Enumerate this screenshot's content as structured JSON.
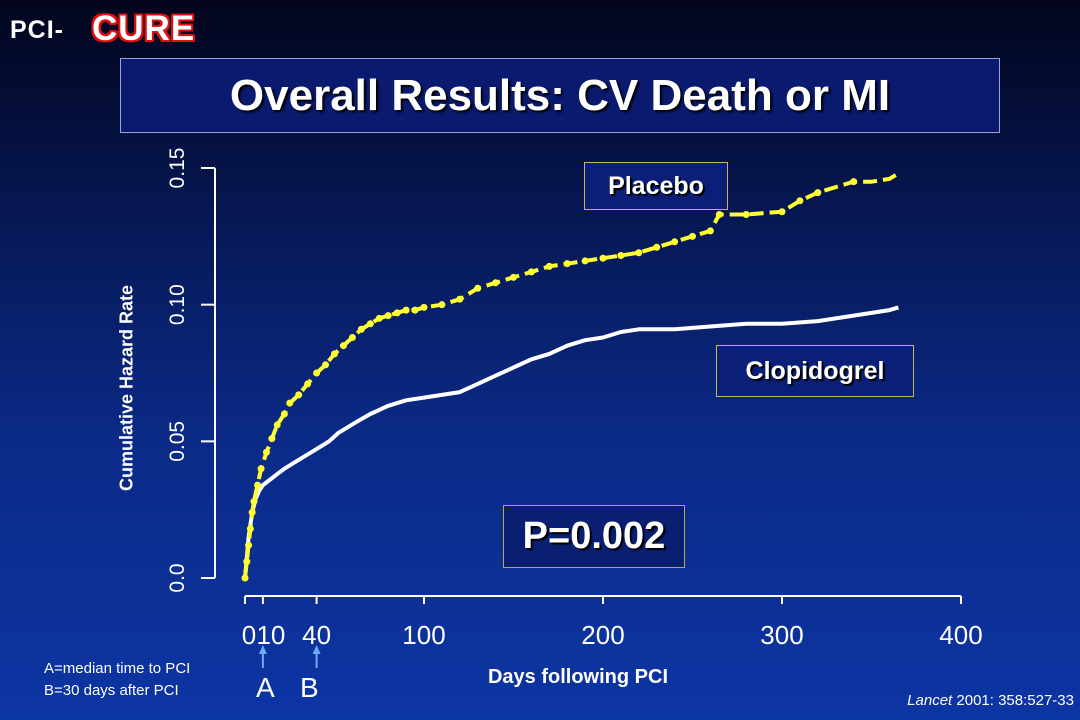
{
  "logo": {
    "prefix": "PCI-",
    "brand": "CURE"
  },
  "title": "Overall Results: CV Death or MI",
  "notes": {
    "a": "A=median time to PCI",
    "b": "B=30 days after PCI"
  },
  "markers": {
    "a": "A",
    "b": "B"
  },
  "citation": {
    "journal": "Lancet",
    "rest": " 2001: 358:527-33"
  },
  "p_value": "P=0.002",
  "colors": {
    "placebo": "#ffff33",
    "clopidogrel": "#ffffff",
    "background": "#0b2a86",
    "logo_outline": "#e01010"
  },
  "chart_data": {
    "type": "line",
    "xlabel": "Days following PCI",
    "ylabel": "Cumulative Hazard Rate",
    "xlim": [
      0,
      400
    ],
    "ylim": [
      0,
      0.15
    ],
    "x_ticks": [
      0,
      10,
      40,
      100,
      200,
      300,
      400
    ],
    "x_tick_labels": [
      "0",
      "10",
      "40",
      "100",
      "200",
      "300",
      "400"
    ],
    "y_ticks": [
      0,
      0.05,
      0.1,
      0.15
    ],
    "y_tick_labels": [
      "0.0",
      "0.05",
      "0.10",
      "0.15"
    ],
    "grid": false,
    "series": [
      {
        "name": "Placebo",
        "style": "dashed-dotted",
        "x": [
          0,
          1,
          2,
          3,
          4,
          5,
          7,
          9,
          12,
          15,
          18,
          22,
          25,
          30,
          35,
          40,
          45,
          50,
          55,
          60,
          65,
          70,
          75,
          80,
          85,
          90,
          95,
          100,
          110,
          120,
          130,
          140,
          150,
          160,
          170,
          180,
          190,
          200,
          210,
          220,
          230,
          240,
          250,
          260,
          265,
          280,
          300,
          310,
          320,
          340,
          350,
          360,
          365
        ],
        "y": [
          0,
          0.006,
          0.012,
          0.018,
          0.024,
          0.028,
          0.034,
          0.04,
          0.046,
          0.051,
          0.056,
          0.06,
          0.064,
          0.067,
          0.071,
          0.075,
          0.078,
          0.082,
          0.085,
          0.088,
          0.091,
          0.093,
          0.095,
          0.096,
          0.097,
          0.098,
          0.098,
          0.099,
          0.1,
          0.102,
          0.106,
          0.108,
          0.11,
          0.112,
          0.114,
          0.115,
          0.116,
          0.117,
          0.118,
          0.119,
          0.121,
          0.123,
          0.125,
          0.127,
          0.133,
          0.133,
          0.134,
          0.138,
          0.141,
          0.145,
          0.145,
          0.146,
          0.148
        ]
      },
      {
        "name": "Clopidogrel",
        "style": "solid",
        "x": [
          0,
          2,
          4,
          6,
          8,
          10,
          14,
          18,
          22,
          27,
          32,
          37,
          42,
          47,
          52,
          57,
          62,
          70,
          80,
          90,
          100,
          110,
          120,
          130,
          140,
          150,
          160,
          170,
          180,
          190,
          200,
          210,
          220,
          240,
          260,
          280,
          300,
          320,
          340,
          360,
          365
        ],
        "y": [
          0,
          0.015,
          0.024,
          0.029,
          0.032,
          0.034,
          0.036,
          0.038,
          0.04,
          0.042,
          0.044,
          0.046,
          0.048,
          0.05,
          0.053,
          0.055,
          0.057,
          0.06,
          0.063,
          0.065,
          0.066,
          0.067,
          0.068,
          0.071,
          0.074,
          0.077,
          0.08,
          0.082,
          0.085,
          0.087,
          0.088,
          0.09,
          0.091,
          0.091,
          0.092,
          0.093,
          0.093,
          0.094,
          0.096,
          0.098,
          0.099
        ]
      }
    ]
  }
}
